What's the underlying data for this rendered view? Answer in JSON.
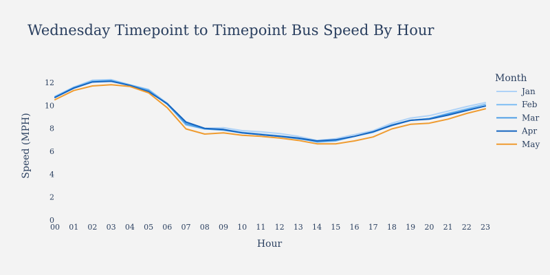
{
  "chart_data": {
    "type": "line",
    "title": "Wednesday Timepoint to Timepoint Bus Speed By Hour",
    "xlabel": "Hour",
    "ylabel": "Speed (MPH)",
    "x": [
      "00",
      "01",
      "02",
      "03",
      "04",
      "05",
      "06",
      "07",
      "08",
      "09",
      "10",
      "11",
      "12",
      "13",
      "14",
      "15",
      "16",
      "17",
      "18",
      "19",
      "20",
      "21",
      "22",
      "23"
    ],
    "ylim": [
      0,
      13.2
    ],
    "yticks": [
      0,
      2,
      4,
      6,
      8,
      10,
      12
    ],
    "grid": false,
    "legend_title": "Month",
    "legend_position": "right",
    "series": [
      {
        "name": "Jan",
        "color": "#aed2f7",
        "values": [
          10.8,
          11.6,
          12.2,
          12.25,
          11.8,
          11.4,
          10.2,
          8.4,
          8.0,
          8.05,
          7.8,
          7.7,
          7.55,
          7.3,
          6.95,
          7.1,
          7.45,
          7.8,
          8.45,
          8.9,
          9.1,
          9.5,
          9.9,
          10.25
        ]
      },
      {
        "name": "Feb",
        "color": "#7dbdf3",
        "values": [
          10.75,
          11.55,
          12.15,
          12.2,
          11.8,
          11.35,
          10.15,
          8.3,
          7.95,
          7.9,
          7.65,
          7.5,
          7.35,
          7.15,
          6.8,
          6.9,
          7.3,
          7.65,
          8.3,
          8.7,
          8.85,
          9.3,
          9.7,
          10.1
        ]
      },
      {
        "name": "Mar",
        "color": "#4f9fe6",
        "values": [
          10.7,
          11.55,
          12.05,
          12.15,
          11.75,
          11.3,
          10.1,
          8.4,
          7.95,
          7.85,
          7.6,
          7.45,
          7.3,
          7.1,
          6.85,
          6.95,
          7.3,
          7.7,
          8.3,
          8.7,
          8.85,
          9.25,
          9.6,
          9.95
        ]
      },
      {
        "name": "Apr",
        "color": "#1565c0",
        "values": [
          10.7,
          11.5,
          12.05,
          12.1,
          11.75,
          11.2,
          10.15,
          8.55,
          8.0,
          7.9,
          7.6,
          7.45,
          7.3,
          7.15,
          6.9,
          7.0,
          7.3,
          7.7,
          8.25,
          8.7,
          8.8,
          9.15,
          9.55,
          9.95
        ]
      },
      {
        "name": "May",
        "color": "#ef9b2f",
        "values": [
          10.5,
          11.3,
          11.7,
          11.8,
          11.65,
          11.1,
          9.8,
          7.95,
          7.5,
          7.6,
          7.4,
          7.3,
          7.15,
          6.95,
          6.65,
          6.65,
          6.9,
          7.25,
          7.95,
          8.35,
          8.45,
          8.8,
          9.3,
          9.7
        ]
      }
    ]
  }
}
